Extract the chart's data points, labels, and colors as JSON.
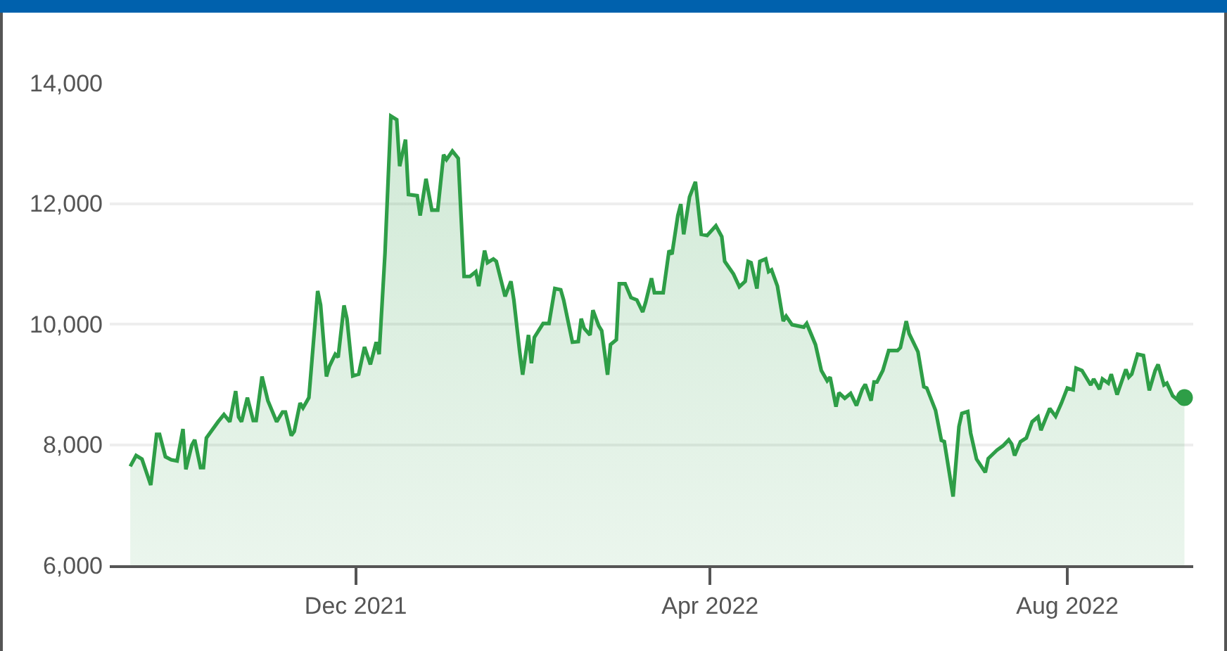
{
  "chart_data": {
    "type": "area",
    "color": "#2e9e47",
    "x": [
      "2021-09-15",
      "2021-09-17",
      "2021-09-19",
      "2021-09-22",
      "2021-09-24",
      "2021-09-25",
      "2021-09-27",
      "2021-09-29",
      "2021-10-01",
      "2021-10-03",
      "2021-10-04",
      "2021-10-06",
      "2021-10-07",
      "2021-10-09",
      "2021-10-10",
      "2021-10-11",
      "2021-10-15",
      "2021-10-17",
      "2021-10-19",
      "2021-10-21",
      "2021-10-22",
      "2021-10-23",
      "2021-10-25",
      "2021-10-27",
      "2021-10-28",
      "2021-10-30",
      "2021-11-01",
      "2021-11-04",
      "2021-11-06",
      "2021-11-07",
      "2021-11-09",
      "2021-11-10",
      "2021-11-12",
      "2021-11-13",
      "2021-11-15",
      "2021-11-18",
      "2021-11-19",
      "2021-11-21",
      "2021-11-22",
      "2021-11-24",
      "2021-11-25",
      "2021-11-27",
      "2021-11-28",
      "2021-11-30",
      "2021-12-02",
      "2021-12-04",
      "2021-12-06",
      "2021-12-08",
      "2021-12-09",
      "2021-12-11",
      "2021-12-13",
      "2021-12-15",
      "2021-12-16",
      "2021-12-18",
      "2021-12-19",
      "2021-12-22",
      "2021-12-23",
      "2021-12-25",
      "2021-12-27",
      "2021-12-29",
      "2021-12-31",
      "2022-01-01",
      "2022-01-03",
      "2022-01-05",
      "2022-01-07",
      "2022-01-09",
      "2022-01-11",
      "2022-01-12",
      "2022-01-14",
      "2022-01-15",
      "2022-01-17",
      "2022-01-18",
      "2022-01-21",
      "2022-01-23",
      "2022-01-24",
      "2022-01-26",
      "2022-01-27",
      "2022-01-29",
      "2022-01-30",
      "2022-01-31",
      "2022-02-03",
      "2022-02-05",
      "2022-02-07",
      "2022-02-09",
      "2022-02-10",
      "2022-02-13",
      "2022-02-15",
      "2022-02-16",
      "2022-02-17",
      "2022-02-19",
      "2022-02-20",
      "2022-02-22",
      "2022-02-23",
      "2022-02-25",
      "2022-02-26",
      "2022-02-28",
      "2022-03-01",
      "2022-03-03",
      "2022-03-05",
      "2022-03-07",
      "2022-03-09",
      "2022-03-10",
      "2022-03-12",
      "2022-03-13",
      "2022-03-16",
      "2022-03-18",
      "2022-03-19",
      "2022-03-21",
      "2022-03-22",
      "2022-03-23",
      "2022-03-25",
      "2022-03-27",
      "2022-03-29",
      "2022-03-31",
      "2022-04-03",
      "2022-04-05",
      "2022-04-06",
      "2022-04-09",
      "2022-04-11",
      "2022-04-13",
      "2022-04-14",
      "2022-04-15",
      "2022-04-17",
      "2022-04-18",
      "2022-04-20",
      "2022-04-21",
      "2022-04-22",
      "2022-04-24",
      "2022-04-26",
      "2022-04-27",
      "2022-04-29",
      "2022-05-01",
      "2022-05-03",
      "2022-05-04",
      "2022-05-07",
      "2022-05-09",
      "2022-05-11",
      "2022-05-12",
      "2022-05-14",
      "2022-05-15",
      "2022-05-17",
      "2022-05-19",
      "2022-05-21",
      "2022-05-23",
      "2022-05-24",
      "2022-05-26",
      "2022-05-27",
      "2022-05-28",
      "2022-05-30",
      "2022-06-01",
      "2022-06-04",
      "2022-06-05",
      "2022-06-07",
      "2022-06-08",
      "2022-06-11",
      "2022-06-13",
      "2022-06-14",
      "2022-06-17",
      "2022-06-19",
      "2022-06-20",
      "2022-06-23",
      "2022-06-25",
      "2022-06-26",
      "2022-06-28",
      "2022-06-29",
      "2022-07-01",
      "2022-07-04",
      "2022-07-05",
      "2022-07-08",
      "2022-07-10",
      "2022-07-12",
      "2022-07-13",
      "2022-07-14",
      "2022-07-16",
      "2022-07-18",
      "2022-07-20",
      "2022-07-22",
      "2022-07-23",
      "2022-07-26",
      "2022-07-28",
      "2022-07-30",
      "2022-08-01",
      "2022-08-03",
      "2022-08-04",
      "2022-08-06",
      "2022-08-09",
      "2022-08-10",
      "2022-08-12",
      "2022-08-13",
      "2022-08-15",
      "2022-08-16",
      "2022-08-18",
      "2022-08-21",
      "2022-08-22",
      "2022-08-23",
      "2022-08-25",
      "2022-08-27",
      "2022-08-29",
      "2022-08-31",
      "2022-09-01",
      "2022-09-03",
      "2022-09-04",
      "2022-09-06",
      "2022-09-08",
      "2022-09-10"
    ],
    "values": [
      7640,
      7820,
      7760,
      7330,
      8170,
      8170,
      7800,
      7750,
      7730,
      8260,
      7590,
      7990,
      8080,
      7620,
      7620,
      8110,
      8380,
      8500,
      8380,
      8890,
      8460,
      8380,
      8780,
      8400,
      8400,
      9130,
      8730,
      8380,
      8540,
      8540,
      8150,
      8220,
      8690,
      8610,
      8780,
      10550,
      10320,
      9130,
      9300,
      9500,
      9450,
      10310,
      10090,
      9140,
      9170,
      9620,
      9330,
      9700,
      9500,
      11180,
      13450,
      13390,
      12620,
      13060,
      12150,
      12130,
      11800,
      12410,
      11890,
      11890,
      12810,
      12730,
      12870,
      12750,
      10790,
      10790,
      10870,
      10630,
      11220,
      11020,
      11080,
      11040,
      10460,
      10710,
      10400,
      9540,
      9160,
      9820,
      9350,
      9780,
      10010,
      10010,
      10590,
      10570,
      10400,
      9700,
      9710,
      10090,
      9930,
      9820,
      10230,
      9970,
      9890,
      9160,
      9660,
      9740,
      10670,
      10670,
      10440,
      10400,
      10200,
      10360,
      10760,
      10520,
      10520,
      11220,
      11160,
      11800,
      11990,
      11490,
      12110,
      12360,
      11490,
      11470,
      11630,
      11450,
      11040,
      10830,
      10620,
      10710,
      11040,
      11020,
      10590,
      11040,
      11080,
      10870,
      10900,
      10630,
      10050,
      10130,
      9990,
      9970,
      9950,
      10010,
      9660,
      9230,
      9060,
      9120,
      8630,
      8860,
      8770,
      8850,
      8650,
      8920,
      9000,
      8730,
      9040,
      9040,
      9230,
      9560,
      9560,
      9610,
      10050,
      9840,
      9540,
      8960,
      8940,
      8570,
      8070,
      8050,
      7140,
      8300,
      8520,
      8550,
      8190,
      7760,
      7540,
      7770,
      7910,
      7980,
      8080,
      8010,
      7820,
      8050,
      8110,
      8380,
      8460,
      8240,
      8600,
      8470,
      8690,
      8940,
      8910,
      9270,
      9230,
      8990,
      9090,
      8920,
      9090,
      9020,
      9170,
      8830,
      9250,
      9120,
      9170,
      9500,
      9480,
      8900,
      9230,
      9330,
      8990,
      9020,
      8810,
      8730,
      8780
    ],
    "xlim": [
      "2021-09-08",
      "2022-09-13"
    ],
    "xticks": [
      {
        "value": "2021-12-01",
        "label": "Dec 2021"
      },
      {
        "value": "2022-04-01",
        "label": "Apr 2022"
      },
      {
        "value": "2022-08-01",
        "label": "Aug 2022"
      }
    ],
    "ylim": [
      6000,
      14000
    ],
    "yticks": [
      {
        "value": 6000,
        "label": "6,000"
      },
      {
        "value": 8000,
        "label": "8,000"
      },
      {
        "value": 10000,
        "label": "10,000"
      },
      {
        "value": 12000,
        "label": "12,000"
      },
      {
        "value": 14000,
        "label": "14,000"
      }
    ],
    "grid": "y"
  }
}
